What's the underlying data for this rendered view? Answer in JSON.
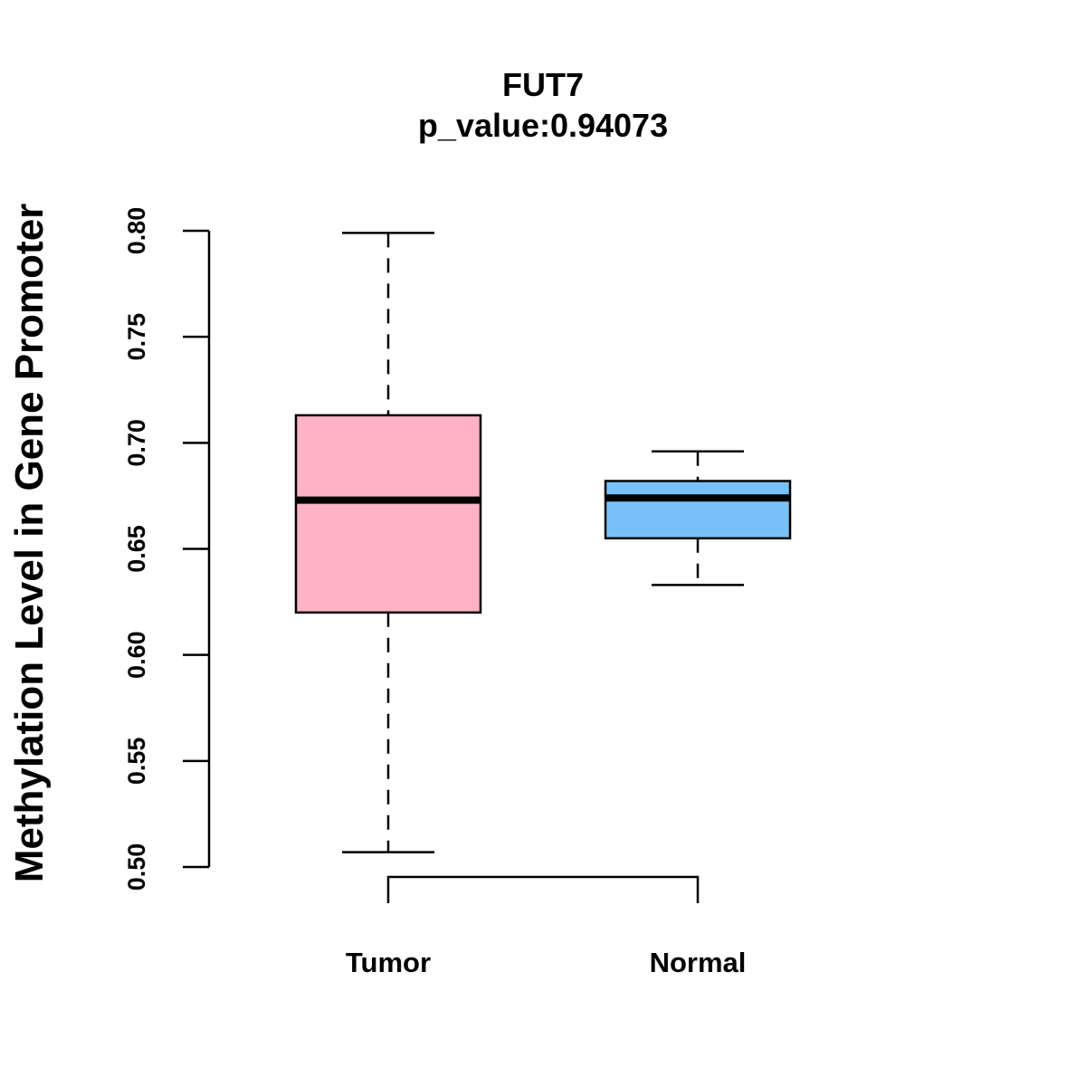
{
  "chart_data": {
    "type": "boxplot",
    "title": "FUT7",
    "subtitle": "p_value:0.94073",
    "xlabel": "",
    "ylabel": "Methylation Level in Gene Promoter",
    "ylim": [
      0.5,
      0.8
    ],
    "yticks": [
      "0.50",
      "0.55",
      "0.60",
      "0.65",
      "0.70",
      "0.75",
      "0.80"
    ],
    "categories": [
      "Tumor",
      "Normal"
    ],
    "groups": [
      {
        "name": "Tumor",
        "color": "#ffb2c5",
        "whisker_low": 0.507,
        "q1": 0.62,
        "median": 0.673,
        "q3": 0.713,
        "whisker_high": 0.799
      },
      {
        "name": "Normal",
        "color": "#78c1f8",
        "whisker_low": 0.633,
        "q1": 0.655,
        "median": 0.674,
        "q3": 0.682,
        "whisker_high": 0.696
      }
    ],
    "comparison_bracket": [
      "Tumor",
      "Normal"
    ],
    "grid": false,
    "legend": "none"
  }
}
